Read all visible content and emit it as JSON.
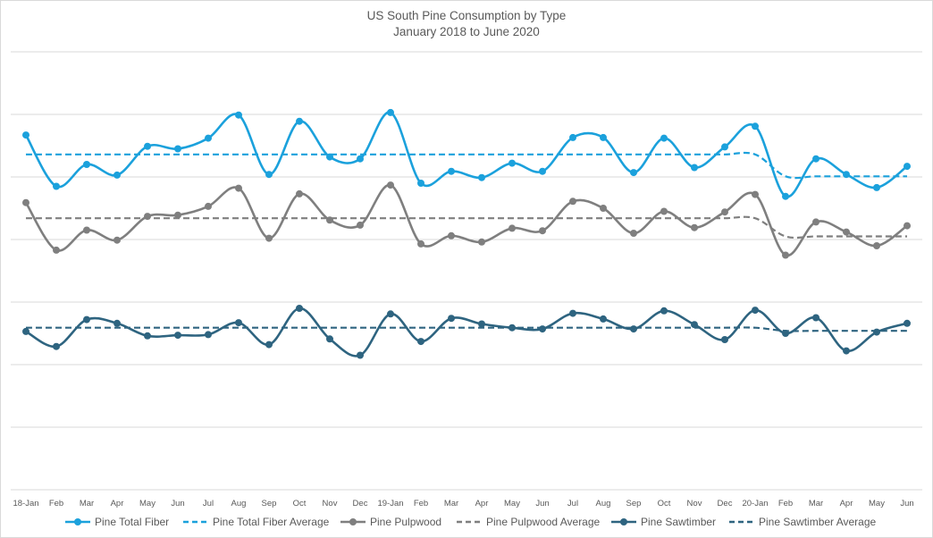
{
  "chart_data": {
    "type": "line",
    "title": "US South Pine Consumption by Type",
    "subtitle": "January 2018 to June 2020",
    "xlabel": "",
    "ylabel": "",
    "grid": true,
    "legend_position": "bottom",
    "categories": [
      "18-Jan",
      "Feb",
      "Mar",
      "Apr",
      "May",
      "Jun",
      "Jul",
      "Aug",
      "Sep",
      "Oct",
      "Nov",
      "Dec",
      "19-Jan",
      "Feb",
      "Mar",
      "Apr",
      "May",
      "Jun",
      "Jul",
      "Aug",
      "Sep",
      "Oct",
      "Nov",
      "Dec",
      "20-Jan",
      "Feb",
      "Mar",
      "Apr",
      "May",
      "Jun"
    ],
    "y_range": [
      0,
      7
    ],
    "series": [
      {
        "name": "Pine Total Fiber",
        "color": "#1ba1dc",
        "style": "solid-markers",
        "values": [
          5.67,
          4.85,
          5.2,
          5.03,
          5.49,
          5.45,
          5.62,
          5.99,
          5.04,
          5.89,
          5.32,
          5.29,
          6.03,
          4.9,
          5.09,
          4.99,
          5.22,
          5.09,
          5.63,
          5.63,
          5.07,
          5.62,
          5.15,
          5.48,
          5.81,
          4.69,
          5.29,
          5.04,
          4.83,
          5.17
        ]
      },
      {
        "name": "Pine Total Fiber Average",
        "color": "#1ba1dc",
        "style": "dashed",
        "values": [
          5.36,
          5.36,
          5.36,
          5.36,
          5.36,
          5.36,
          5.36,
          5.36,
          5.36,
          5.36,
          5.36,
          5.36,
          5.36,
          5.36,
          5.36,
          5.36,
          5.36,
          5.36,
          5.36,
          5.36,
          5.36,
          5.36,
          5.36,
          5.36,
          5.36,
          5.01,
          5.01,
          5.01,
          5.01,
          5.01
        ]
      },
      {
        "name": "Pine Pulpwood",
        "color": "#7f7f7f",
        "style": "solid-markers",
        "values": [
          4.59,
          3.83,
          4.15,
          3.99,
          4.37,
          4.39,
          4.53,
          4.82,
          4.02,
          4.73,
          4.31,
          4.23,
          4.87,
          3.93,
          4.06,
          3.96,
          4.18,
          4.14,
          4.61,
          4.5,
          4.1,
          4.45,
          4.19,
          4.44,
          4.72,
          3.75,
          4.28,
          4.12,
          3.9,
          4.22
        ]
      },
      {
        "name": "Pine Pulpwood Average",
        "color": "#7f7f7f",
        "style": "dashed",
        "values": [
          4.34,
          4.34,
          4.34,
          4.34,
          4.34,
          4.34,
          4.34,
          4.34,
          4.34,
          4.34,
          4.34,
          4.34,
          4.34,
          4.34,
          4.34,
          4.34,
          4.34,
          4.34,
          4.34,
          4.34,
          4.34,
          4.34,
          4.34,
          4.34,
          4.34,
          4.05,
          4.05,
          4.05,
          4.05,
          4.05
        ]
      },
      {
        "name": "Pine Sawtimber",
        "color": "#2e6480",
        "style": "solid-markers",
        "values": [
          2.53,
          2.29,
          2.72,
          2.66,
          2.46,
          2.47,
          2.48,
          2.67,
          2.32,
          2.9,
          2.41,
          2.15,
          2.81,
          2.37,
          2.74,
          2.65,
          2.59,
          2.57,
          2.82,
          2.73,
          2.57,
          2.86,
          2.64,
          2.4,
          2.87,
          2.5,
          2.75,
          2.22,
          2.52,
          2.66
        ]
      },
      {
        "name": "Pine Sawtimber Average",
        "color": "#2e6480",
        "style": "dashed",
        "values": [
          2.59,
          2.59,
          2.59,
          2.59,
          2.59,
          2.59,
          2.59,
          2.59,
          2.59,
          2.59,
          2.59,
          2.59,
          2.59,
          2.59,
          2.59,
          2.59,
          2.59,
          2.59,
          2.59,
          2.59,
          2.59,
          2.59,
          2.59,
          2.59,
          2.59,
          2.54,
          2.54,
          2.54,
          2.54,
          2.54
        ]
      }
    ]
  }
}
